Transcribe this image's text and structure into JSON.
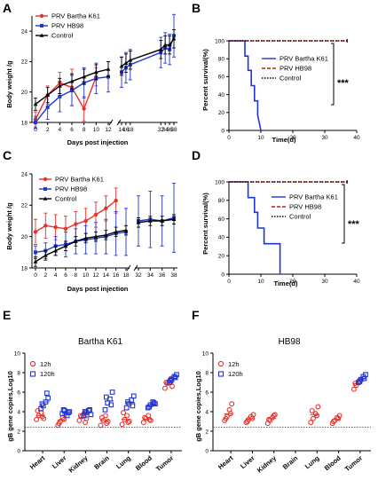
{
  "panels": {
    "A": "A",
    "B": "B",
    "C": "C",
    "D": "D",
    "E": "E",
    "F": "F"
  },
  "chart_data": [
    {
      "id": "A",
      "type": "line",
      "xlabel": "Days post injection",
      "ylabel": "Body weight /g",
      "ylim": [
        18,
        25
      ],
      "yticks": [
        "18",
        "20",
        "22",
        "24"
      ],
      "xticks_left": [
        "0",
        "2",
        "4",
        "6",
        "8",
        "10",
        "12"
      ],
      "xticks_right": [
        "14",
        "16",
        "18",
        "32",
        "34",
        "36",
        "38"
      ],
      "x_break": true,
      "legend": [
        "PRV Bartha K61",
        "PRV HB98",
        "Control"
      ],
      "colors": {
        "PRV Bartha K61": "#e8302a",
        "PRV HB98": "#1f36d6",
        "Control": "#000000"
      },
      "series": [
        {
          "name": "PRV Bartha K61",
          "x": [
            0,
            2,
            4,
            6,
            8,
            10
          ],
          "y": [
            18.2,
            19.8,
            20.6,
            20.3,
            18.9,
            21.0
          ],
          "err": [
            0.5,
            0.6,
            0.7,
            1.2,
            0.8,
            0.6
          ]
        },
        {
          "name": "PRV HB98",
          "x": [
            0,
            2,
            4,
            6,
            8,
            10,
            12,
            14,
            16,
            18,
            32,
            34,
            36,
            38
          ],
          "y": [
            18.0,
            19.0,
            19.7,
            20.1,
            20.6,
            20.9,
            21.0,
            21.3,
            21.6,
            21.8,
            22.6,
            22.9,
            22.8,
            23.7
          ],
          "err": [
            0.4,
            0.8,
            1.0,
            1.0,
            1.0,
            1.0,
            1.0,
            1.0,
            1.0,
            1.0,
            1.0,
            1.0,
            1.0,
            1.4
          ]
        },
        {
          "name": "Control",
          "x": [
            0,
            2,
            4,
            6,
            8,
            10,
            12,
            14,
            16,
            18,
            32,
            34,
            36,
            38
          ],
          "y": [
            19.2,
            19.8,
            20.4,
            20.7,
            21.0,
            21.3,
            21.5,
            21.7,
            21.9,
            22.1,
            22.8,
            23.1,
            23.1,
            23.5
          ],
          "err": [
            0.4,
            0.5,
            0.5,
            0.5,
            0.5,
            0.5,
            0.5,
            0.6,
            0.6,
            0.6,
            0.6,
            0.6,
            0.6,
            0.6
          ]
        }
      ]
    },
    {
      "id": "B",
      "type": "line",
      "xlabel": "Time(d)",
      "ylabel": "Percent survival(%)",
      "ylim": [
        0,
        100
      ],
      "xlim": [
        0,
        40
      ],
      "yticks": [
        "0",
        "20",
        "40",
        "60",
        "80",
        "100"
      ],
      "xticks": [
        "0",
        "10",
        "20",
        "30",
        "40"
      ],
      "legend": [
        "PRV Bartha K61",
        "PRV HB98",
        "Control"
      ],
      "significance": "***",
      "series": [
        {
          "name": "PRV Bartha K61",
          "x": [
            0,
            5,
            5,
            6,
            6,
            7,
            7,
            8,
            8,
            9,
            9,
            10
          ],
          "y": [
            100,
            100,
            83,
            83,
            67,
            67,
            50,
            50,
            33,
            33,
            17,
            0
          ]
        },
        {
          "name": "PRV HB98",
          "x": [
            0,
            37
          ],
          "y": [
            100,
            100
          ]
        },
        {
          "name": "Control",
          "x": [
            0,
            37
          ],
          "y": [
            100,
            100
          ]
        }
      ]
    },
    {
      "id": "C",
      "type": "line",
      "xlabel": "Days post injection",
      "ylabel": "Body weight /g",
      "ylim": [
        18,
        24
      ],
      "yticks": [
        "18",
        "20",
        "22",
        "24"
      ],
      "xticks_left": [
        "0",
        "2",
        "4",
        "6",
        "8",
        "10",
        "12",
        "14",
        "16",
        "18"
      ],
      "xticks_right": [
        "32",
        "34",
        "36",
        "38"
      ],
      "x_break": true,
      "legend": [
        "PRV Bartha K61",
        "PRV HB98",
        "Control"
      ],
      "series": [
        {
          "name": "PRV Bartha K61",
          "x": [
            0,
            2,
            4,
            6,
            8,
            10,
            12,
            14,
            16
          ],
          "y": [
            20.3,
            20.7,
            20.6,
            20.5,
            20.8,
            21.0,
            21.4,
            21.8,
            22.3
          ],
          "err": [
            0.8,
            0.8,
            0.8,
            0.8,
            0.8,
            0.8,
            0.8,
            0.8,
            0.8
          ]
        },
        {
          "name": "PRV HB98",
          "x": [
            0,
            2,
            4,
            6,
            8,
            10,
            12,
            14,
            16,
            18,
            32,
            34,
            36,
            38
          ],
          "y": [
            19.0,
            19.1,
            19.4,
            19.5,
            19.7,
            19.8,
            19.9,
            20.0,
            20.2,
            20.3,
            21.0,
            21.1,
            21.0,
            21.2
          ],
          "err": [
            0.4,
            0.5,
            0.6,
            0.8,
            0.8,
            0.9,
            1.0,
            1.1,
            1.4,
            1.5,
            1.6,
            1.8,
            1.6,
            2.2
          ]
        },
        {
          "name": "Control",
          "x": [
            0,
            2,
            4,
            6,
            8,
            10,
            12,
            14,
            16,
            18,
            32,
            34,
            36,
            38
          ],
          "y": [
            18.4,
            18.8,
            19.1,
            19.4,
            19.7,
            19.9,
            20.0,
            20.1,
            20.3,
            20.4,
            20.9,
            21.0,
            21.0,
            21.1
          ],
          "err": [
            0.3,
            0.3,
            0.3,
            0.3,
            0.3,
            0.3,
            0.3,
            0.3,
            0.3,
            0.3,
            0.3,
            0.3,
            0.3,
            0.3
          ]
        }
      ]
    },
    {
      "id": "D",
      "type": "line",
      "xlabel": "Time(d)",
      "ylabel": "Percent survival(%)",
      "ylim": [
        0,
        100
      ],
      "xlim": [
        0,
        40
      ],
      "yticks": [
        "0",
        "20",
        "40",
        "60",
        "80",
        "100"
      ],
      "xticks": [
        "0",
        "10",
        "20",
        "30",
        "40"
      ],
      "legend": [
        "PRV Bartha K61",
        "PRV HB98",
        "Control"
      ],
      "significance": "***",
      "series": [
        {
          "name": "PRV Bartha K61",
          "x": [
            0,
            6,
            6,
            8,
            8,
            9,
            9,
            11,
            11,
            16,
            16
          ],
          "y": [
            100,
            100,
            83,
            83,
            67,
            67,
            50,
            50,
            33,
            33,
            0
          ]
        },
        {
          "name": "PRV HB98",
          "x": [
            0,
            37
          ],
          "y": [
            100,
            100
          ]
        },
        {
          "name": "Control",
          "x": [
            0,
            37
          ],
          "y": [
            100,
            100
          ]
        }
      ]
    },
    {
      "id": "E",
      "type": "scatter",
      "title": "Bartha K61",
      "ylabel": "gB gene copies,Log10",
      "ylim": [
        0,
        10
      ],
      "yticks": [
        "0",
        "2",
        "4",
        "6",
        "8",
        "10"
      ],
      "categories": [
        "Heart",
        "Liver",
        "Kidney",
        "Brain",
        "Lung",
        "Blood",
        "Tumor"
      ],
      "threshold": 2.4,
      "legend": [
        "12h",
        "120h"
      ],
      "series": [
        {
          "name": "12h",
          "values": [
            [
              3.2,
              3.6,
              3.9,
              3.3,
              4.1,
              3.5
            ],
            [
              2.6,
              3.0,
              3.4,
              3.7,
              2.8,
              3.2
            ],
            [
              3.1,
              3.5,
              3.8,
              3.3,
              3.6,
              2.9
            ],
            [
              2.6,
              3.1,
              3.6,
              3.0,
              3.4,
              2.8
            ],
            [
              2.7,
              3.2,
              3.6,
              3.0,
              3.9,
              2.9
            ],
            [
              2.9,
              3.3,
              3.6,
              3.1,
              3.4,
              3.2
            ],
            [
              6.4,
              6.9,
              7.2,
              6.6,
              7.0,
              7.4
            ]
          ]
        },
        {
          "name": "120h",
          "values": [
            [
              4.3,
              4.6,
              5.0,
              5.4,
              4.8,
              5.9
            ],
            [
              3.8,
              4.1,
              3.6,
              4.0,
              4.2,
              3.9
            ],
            [
              3.6,
              3.9,
              4.1,
              3.7,
              4.0,
              4.2
            ],
            [
              4.2,
              4.9,
              5.3,
              6.0,
              5.5,
              4.7
            ],
            [
              4.4,
              4.8,
              5.2,
              5.6,
              5.0,
              4.6
            ],
            [
              4.4,
              4.7,
              5.0,
              4.8,
              4.5,
              4.9
            ],
            [
              7.0,
              7.3,
              7.6,
              7.8,
              7.2,
              7.5
            ]
          ]
        }
      ]
    },
    {
      "id": "F",
      "type": "scatter",
      "title": "HB98",
      "ylabel": "gB gene copies,Log10",
      "ylim": [
        0,
        10
      ],
      "yticks": [
        "0",
        "2",
        "4",
        "6",
        "8",
        "10"
      ],
      "categories": [
        "Heart",
        "Liver",
        "Kidney",
        "Brain",
        "Lung",
        "Blood",
        "Tumor"
      ],
      "threshold": 2.4,
      "legend": [
        "12h",
        "120h"
      ],
      "series": [
        {
          "name": "12h",
          "values": [
            [
              3.1,
              3.5,
              4.2,
              4.8,
              3.3,
              3.8
            ],
            [
              2.9,
              3.2,
              3.5,
              3.7,
              3.0,
              3.3
            ],
            [
              2.8,
              3.1,
              3.4,
              3.7,
              3.2,
              3.6
            ],
            [],
            [
              2.9,
              3.3,
              3.8,
              4.5,
              4.1,
              3.6
            ],
            [
              2.8,
              3.1,
              3.4,
              3.6,
              3.0,
              3.3
            ],
            [
              6.3,
              6.7,
              7.0,
              7.3,
              6.9,
              7.1
            ]
          ]
        },
        {
          "name": "120h",
          "values": [
            [],
            [],
            [],
            [],
            [],
            [],
            [
              7.0,
              7.3,
              7.6,
              7.8,
              7.1,
              7.4
            ]
          ]
        }
      ]
    }
  ]
}
